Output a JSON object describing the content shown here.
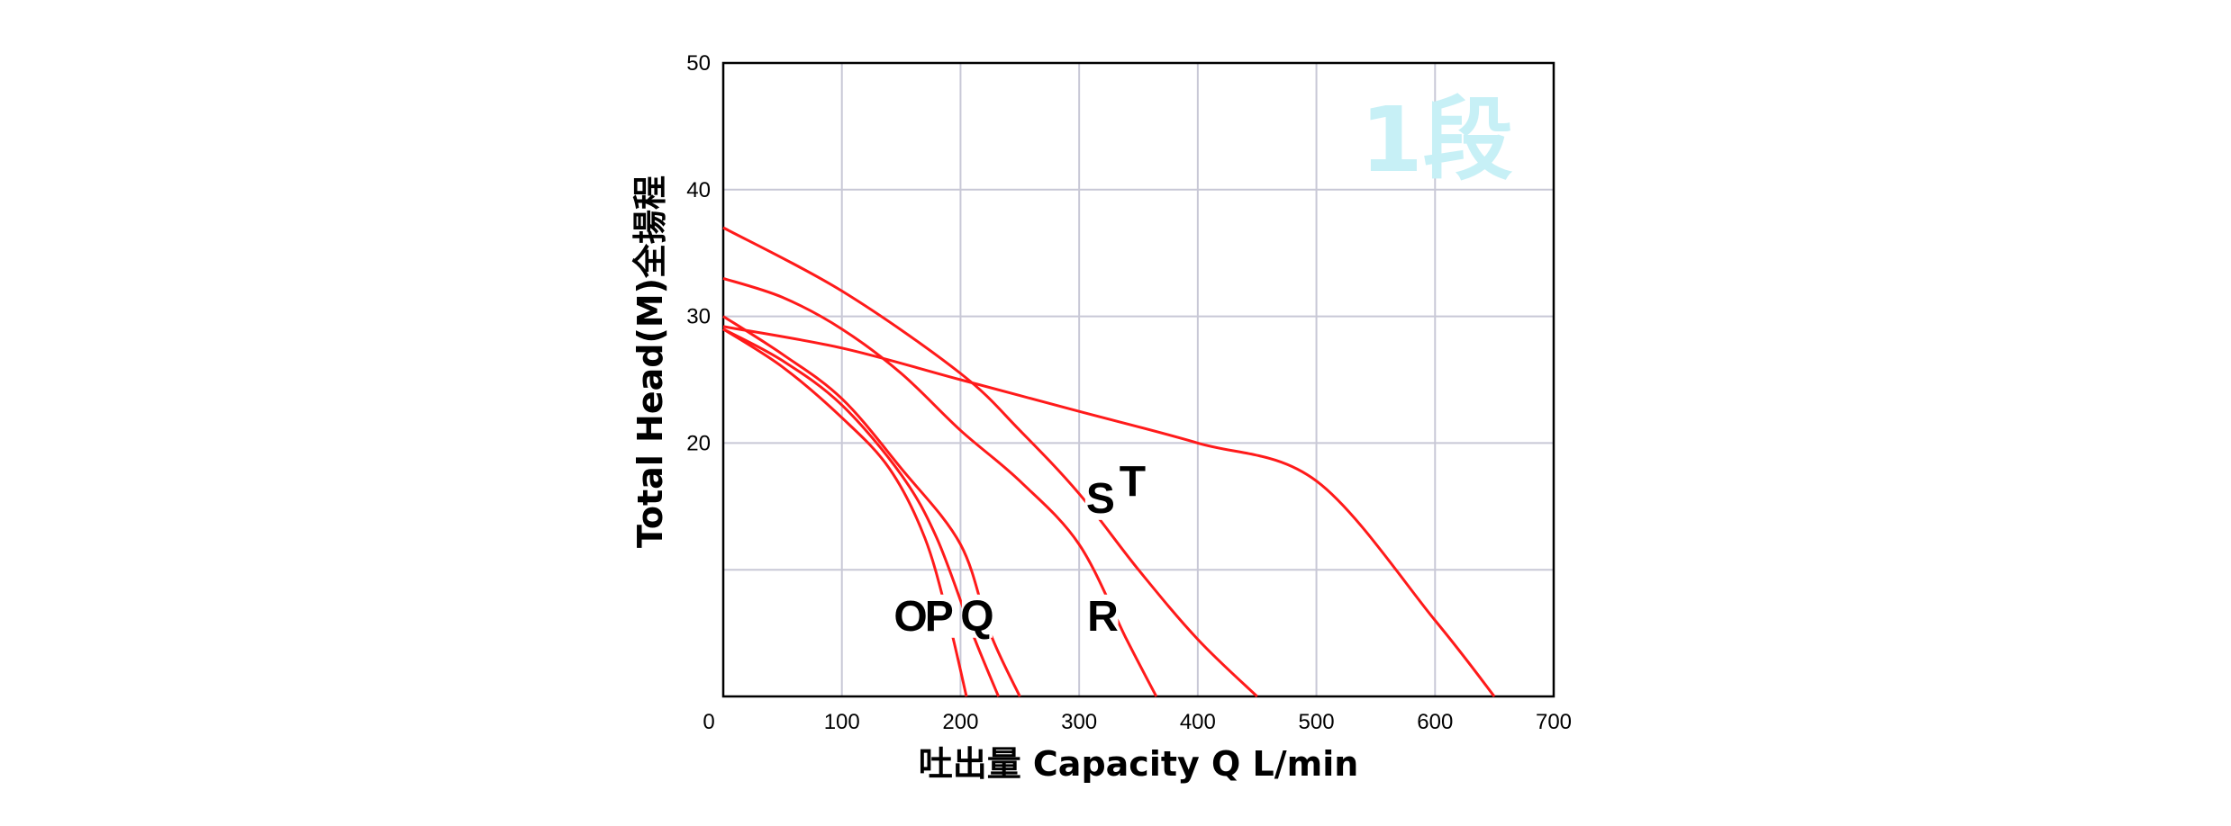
{
  "chart_data": {
    "type": "line",
    "xlabel": "吐出量 Capacity   Q  L/min",
    "ylabel": "Total  Head(M)全揚程",
    "badge": "1段",
    "xlim": [
      0,
      700
    ],
    "ylim": [
      0,
      50
    ],
    "x_ticks": [
      "0",
      "100",
      "200",
      "300",
      "400",
      "500",
      "600",
      "700"
    ],
    "y_ticks": [
      "20",
      "30",
      "40",
      "50"
    ],
    "grid": true,
    "series": [
      {
        "name": "O",
        "color": "#ff1a1a",
        "points": [
          [
            0,
            29
          ],
          [
            50,
            26
          ],
          [
            100,
            22
          ],
          [
            140,
            18
          ],
          [
            170,
            12.5
          ],
          [
            190,
            6
          ],
          [
            205,
            0
          ]
        ]
      },
      {
        "name": "P",
        "color": "#ff1a1a",
        "points": [
          [
            0,
            29
          ],
          [
            50,
            26.5
          ],
          [
            100,
            23
          ],
          [
            150,
            17.5
          ],
          [
            180,
            12.5
          ],
          [
            210,
            5
          ],
          [
            232,
            0
          ]
        ]
      },
      {
        "name": "Q",
        "color": "#ff1a1a",
        "points": [
          [
            0,
            30
          ],
          [
            50,
            27
          ],
          [
            100,
            23.5
          ],
          [
            150,
            18
          ],
          [
            200,
            12
          ],
          [
            225,
            5
          ],
          [
            250,
            0
          ]
        ]
      },
      {
        "name": "R",
        "color": "#ff1a1a",
        "points": [
          [
            0,
            33
          ],
          [
            50,
            31.5
          ],
          [
            100,
            29
          ],
          [
            150,
            25.5
          ],
          [
            200,
            21
          ],
          [
            250,
            17
          ],
          [
            300,
            12
          ],
          [
            340,
            4.5
          ],
          [
            365,
            0
          ]
        ]
      },
      {
        "name": "S",
        "color": "#ff1a1a",
        "points": [
          [
            0,
            29.2
          ],
          [
            100,
            27.5
          ],
          [
            200,
            25
          ],
          [
            300,
            22.5
          ],
          [
            400,
            20
          ],
          [
            500,
            17
          ],
          [
            600,
            6
          ],
          [
            650,
            0
          ]
        ]
      },
      {
        "name": "T",
        "color": "#ff1a1a",
        "points": [
          [
            0,
            37
          ],
          [
            100,
            32
          ],
          [
            200,
            25.5
          ],
          [
            250,
            21
          ],
          [
            300,
            16
          ],
          [
            350,
            10
          ],
          [
            400,
            4.5
          ],
          [
            450,
            0
          ]
        ]
      }
    ],
    "curve_labels": [
      {
        "text": "O",
        "x": 158,
        "y": 5.2
      },
      {
        "text": "P",
        "x": 182,
        "y": 5.2
      },
      {
        "text": "Q",
        "x": 214,
        "y": 5.2
      },
      {
        "text": "R",
        "x": 320,
        "y": 5.2
      },
      {
        "text": "S",
        "x": 318,
        "y": 14.5
      },
      {
        "text": "T",
        "x": 345,
        "y": 15.8
      }
    ]
  }
}
